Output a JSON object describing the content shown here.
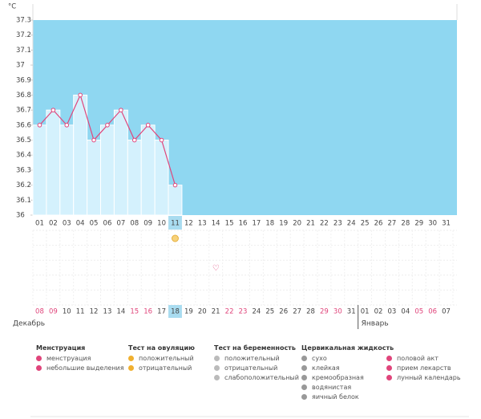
{
  "chart_data": {
    "type": "line",
    "y_label": "°C",
    "categories": [
      "01",
      "02",
      "03",
      "04",
      "05",
      "06",
      "07",
      "08",
      "09",
      "10",
      "11",
      "12",
      "13",
      "14",
      "15",
      "16",
      "17",
      "18",
      "19",
      "20",
      "21",
      "22",
      "23",
      "24",
      "25",
      "26",
      "27",
      "28",
      "29",
      "30",
      "31"
    ],
    "values": [
      36.6,
      36.7,
      36.6,
      36.8,
      36.5,
      36.6,
      36.7,
      36.5,
      36.6,
      36.5,
      36.2,
      null,
      null,
      null,
      null,
      null,
      null,
      null,
      null,
      null,
      null,
      null,
      null,
      null,
      null,
      null,
      null,
      null,
      null,
      null,
      null
    ],
    "color": "#e0457b",
    "highlight": 10,
    "ylim": [
      36,
      37.3
    ],
    "yticks": [
      36,
      36.1,
      36.2,
      36.3,
      36.4,
      36.5,
      36.6,
      36.7,
      36.8,
      36.9,
      37,
      37.1,
      37.2,
      37.3
    ]
  },
  "calendar": {
    "dates": [
      "08",
      "09",
      "10",
      "11",
      "12",
      "13",
      "14",
      "15",
      "16",
      "17",
      "18",
      "19",
      "20",
      "21",
      "22",
      "23",
      "24",
      "25",
      "26",
      "27",
      "28",
      "29",
      "30",
      "31",
      "01",
      "02",
      "03",
      "04",
      "05",
      "06",
      "07"
    ],
    "weekend": [
      true,
      true,
      false,
      false,
      false,
      false,
      false,
      true,
      true,
      false,
      false,
      false,
      false,
      false,
      true,
      true,
      false,
      false,
      false,
      false,
      false,
      true,
      true,
      false,
      false,
      false,
      false,
      false,
      true,
      true,
      false
    ],
    "today": 10,
    "months": [
      "Декабрь",
      "Январь"
    ]
  },
  "legend": [
    {
      "title": "Менструация",
      "items": [
        "менструация",
        "небольшие выделения"
      ]
    },
    {
      "title": "Тест на овуляцию",
      "items": [
        "положительный",
        "отрицательный"
      ]
    },
    {
      "title": "Тест на беременность",
      "items": [
        "положительный",
        "отрицательный",
        "слабоположительный"
      ]
    },
    {
      "title": "Цервикальная жидкость",
      "items": [
        "сухо",
        "клейкая",
        "кремообразная",
        "водянистая",
        "яичный белок"
      ]
    },
    {
      "items": [
        "половой акт",
        "прием лекарств",
        "лунный календарь"
      ]
    }
  ]
}
